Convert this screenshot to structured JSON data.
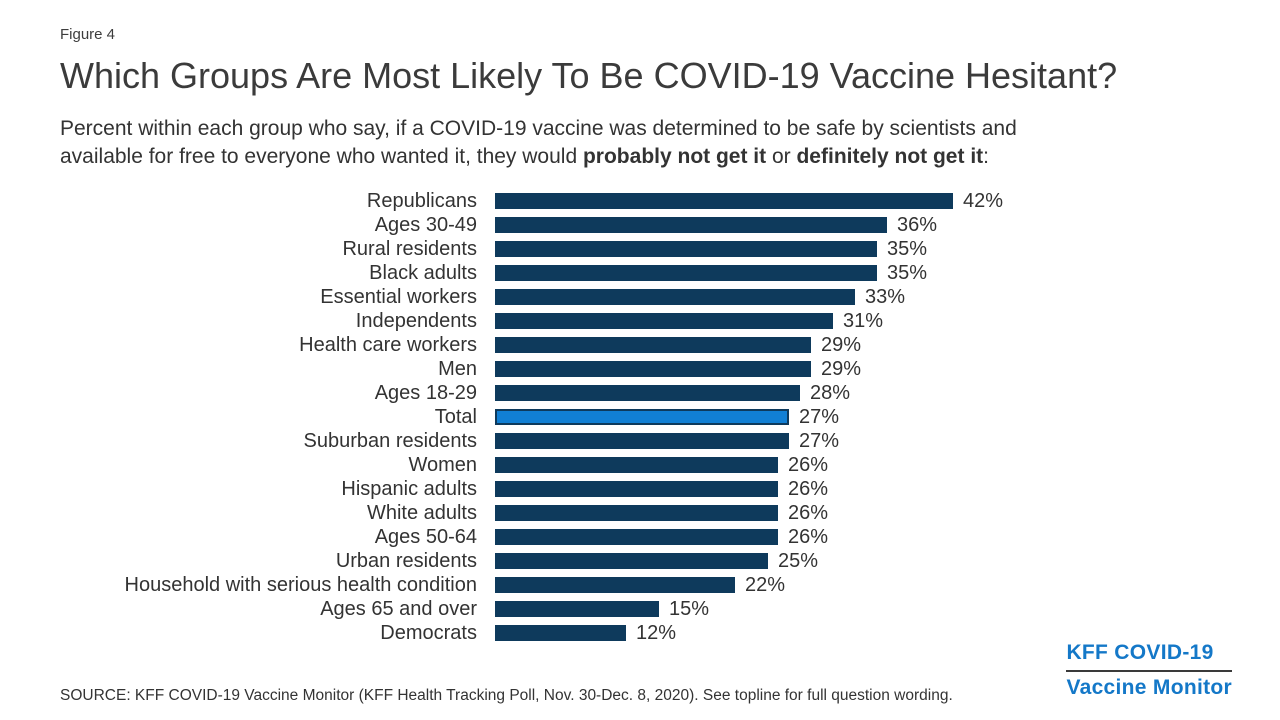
{
  "figure_label": "Figure 4",
  "title": "Which Groups Are Most Likely To Be COVID-19 Vaccine Hesitant?",
  "subtitle": {
    "line1": "Percent within each group who say, if a COVID-19 vaccine was determined to be safe by scientists and",
    "line2_part1": "available for free to everyone who wanted it, they would ",
    "line2_bold1": "probably not get it",
    "line2_part2": " or ",
    "line2_bold2": "definitely not get it",
    "line2_part3": ":"
  },
  "chart_data": {
    "type": "bar",
    "orientation": "horizontal",
    "categories": [
      "Republicans",
      "Ages 30-49",
      "Rural residents",
      "Black adults",
      "Essential workers",
      "Independents",
      "Health care workers",
      "Men",
      "Ages 18-29",
      "Total",
      "Suburban residents",
      "Women",
      "Hispanic adults",
      "White adults",
      "Ages 50-64",
      "Urban residents",
      "Household with serious health condition",
      "Ages 65 and over",
      "Democrats"
    ],
    "values": [
      42,
      36,
      35,
      35,
      33,
      31,
      29,
      29,
      28,
      27,
      27,
      26,
      26,
      26,
      26,
      25,
      22,
      15,
      12
    ],
    "value_suffix": "%",
    "highlight_category": "Total",
    "bar_color": "#0e3a5c",
    "highlight_color": "#117fd4",
    "xlim": [
      0,
      46
    ],
    "grid": false,
    "legend": false,
    "value_labels_shown": true
  },
  "footer": {
    "source": "SOURCE: KFF COVID-19 Vaccine Monitor (KFF Health Tracking Poll, Nov. 30-Dec. 8, 2020). See topline for full question wording."
  },
  "logo": {
    "line1": "KFF COVID-19",
    "line2": "Vaccine Monitor",
    "color": "#1478c8"
  }
}
